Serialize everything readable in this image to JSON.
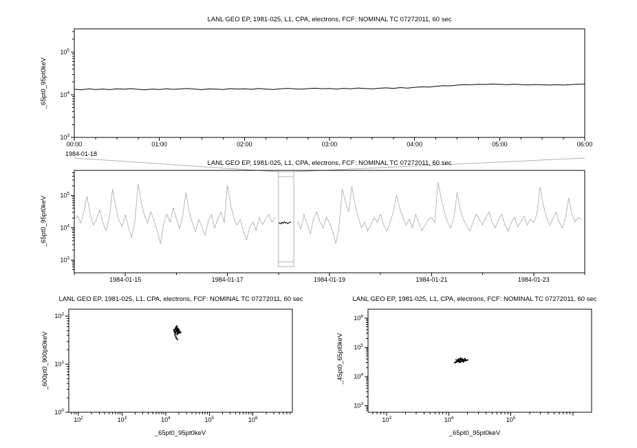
{
  "colors": {
    "zoom_line": "#000000",
    "context_line": "#b8b8b8",
    "selection": "#b0b0b0",
    "scatter": "#000000"
  },
  "chart_data": [
    {
      "id": "top_zoom_timeseries",
      "type": "line",
      "title": "LANL GEO EP, 1981-025, L1, CPA, electrons, FCF: NOMINAL TC 07272011, 60 sec",
      "ylabel": "_65pt0_95pt0keV",
      "yscale": "log",
      "ylim": [
        1000,
        350000
      ],
      "ytick_exponents": [
        3,
        4,
        5
      ],
      "xlim_hours": [
        0,
        6
      ],
      "xtick_labels": [
        "00:00",
        "01:00",
        "02:00",
        "03:00",
        "04:00",
        "05:00",
        "06:00"
      ],
      "x_start_label": "1984-01-18",
      "values": [
        13400,
        13100,
        13700,
        13300,
        13600,
        13200,
        13800,
        13500,
        13900,
        13400,
        13100,
        13600,
        13300,
        13800,
        13400,
        13700,
        14000,
        13500,
        13200,
        13700,
        13500,
        13300,
        13900,
        13600,
        13800,
        13400,
        14000,
        13600,
        13300,
        13700,
        14100,
        13800,
        13500,
        13900,
        14200,
        13800,
        14000,
        13600,
        14100,
        13800,
        14400,
        14000,
        13700,
        14200,
        14500,
        14100,
        14700,
        14300,
        14900,
        15300,
        15100,
        15800,
        16300,
        16100,
        16800,
        17300,
        17100,
        17600,
        17400,
        17800,
        17500,
        17200,
        17700,
        17300,
        17000,
        17400,
        17100,
        16800,
        17200,
        16900,
        17300,
        17700,
        17900
      ]
    },
    {
      "id": "context_timeseries",
      "type": "line",
      "title": "LANL GEO EP, 1981-025, L1, CPA, electrons, FCF: NOMINAL TC 07272011, 60 sec",
      "ylabel": "_65pt0_95pt0keV",
      "yscale": "log",
      "ylim": [
        400,
        600000
      ],
      "ytick_exponents": [
        3,
        4,
        5
      ],
      "xlim_days": [
        0,
        10
      ],
      "xtick_labels": [
        "1984-01-15",
        "1984-01-17",
        "1984-01-19",
        "1984-01-21",
        "1984-01-23"
      ],
      "xtick_day_offsets": [
        1,
        3,
        5,
        7,
        9
      ],
      "values": [
        18000,
        23000,
        14000,
        32000,
        95000,
        26000,
        12000,
        19000,
        36000,
        14000,
        8000,
        21000,
        160000,
        42000,
        17000,
        11000,
        26000,
        10000,
        5000,
        16000,
        230000,
        62000,
        24000,
        14000,
        31000,
        17000,
        8000,
        3200,
        13000,
        26000,
        15000,
        42000,
        19000,
        9500,
        23000,
        125000,
        31000,
        14000,
        7500,
        18000,
        11000,
        5800,
        16000,
        26000,
        9800,
        19000,
        31000,
        14000,
        210000,
        52000,
        21000,
        12000,
        18000,
        7800,
        4200,
        10500,
        15000,
        8200,
        21000,
        12500,
        18500,
        26000,
        14500,
        21000,
        null,
        null,
        null,
        null,
        null,
        null,
        16000,
        9000,
        26000,
        13000,
        6200,
        19000,
        31000,
        15000,
        9800,
        21000,
        14000,
        7800,
        3200,
        11000,
        160000,
        62000,
        31000,
        190000,
        52000,
        21000,
        10000,
        15000,
        8000,
        12500,
        21000,
        14500,
        26000,
        12000,
        7800,
        15000,
        31000,
        105000,
        42000,
        21000,
        12000,
        18500,
        9800,
        26000,
        15000,
        8200,
        12000,
        18000,
        21000,
        14500,
        260000,
        82000,
        31000,
        15000,
        9800,
        21000,
        125000,
        36000,
        18000,
        11500,
        7800,
        15000,
        26000,
        18000,
        12000,
        21000,
        31000,
        14500,
        9800,
        18000,
        26000,
        12000,
        7800,
        15000,
        21000,
        10500,
        15500,
        23000,
        12000,
        18500,
        14500,
        26000,
        185000,
        52000,
        21000,
        12000,
        18500,
        31000,
        15000,
        9800,
        21000,
        85000,
        26000,
        15500,
        21000,
        18000
      ],
      "highlight": {
        "start_day": 4.0,
        "end_day": 4.25,
        "values": [
          13600,
          14300,
          13100,
          14900,
          13500,
          15300,
          13900,
          14600,
          13300,
          14200,
          15100,
          14400
        ]
      },
      "selection_box": {
        "start_day": 4.0,
        "end_day": 4.3
      }
    },
    {
      "id": "scatter_600_900_vs_65_95",
      "type": "scatter",
      "title": "LANL GEO EP, 1981-025, L1, CPA, electrons, FCF: NOMINAL TC 07272011, 60 sec",
      "xlabel": "_65pt0_95pt0keV",
      "ylabel": "_600pt0_900pt0keV",
      "xscale": "log",
      "yscale": "log",
      "xlim": [
        60,
        8000000
      ],
      "ylim": [
        1,
        140
      ],
      "xtick_exponents": [
        2,
        3,
        4,
        5,
        6
      ],
      "ytick_exponents": [
        0,
        1,
        2
      ],
      "x": [
        17000,
        18000,
        16500,
        19000,
        17500,
        18500,
        16000,
        20000,
        17200,
        18800,
        15800,
        19500,
        17800,
        16800,
        18200,
        21000,
        17400,
        16200,
        19200,
        18600,
        15500,
        20500,
        17600,
        18400,
        16600,
        19800,
        17000,
        18000,
        22000,
        16400,
        17500,
        18500
      ],
      "y": [
        48,
        52,
        45,
        50,
        55,
        42,
        47,
        53,
        58,
        44,
        49,
        46,
        51,
        56,
        43,
        48,
        60,
        41,
        54,
        47,
        52,
        45,
        49,
        57,
        44,
        50,
        38,
        62,
        46,
        53,
        35,
        33
      ]
    },
    {
      "id": "scatter_45_65_vs_65_95",
      "type": "scatter",
      "title": "LANL GEO EP, 1981-025, L1, CPA, electrons, FCF: NOMINAL TC 07272011, 60 sec",
      "xlabel": "_65pt0_95pt0keV",
      "ylabel": "_45pt0_65pt0keV",
      "xscale": "log",
      "yscale": "log",
      "xlim": [
        500,
        2000000
      ],
      "ylim": [
        600,
        2000000
      ],
      "xtick_exponents": [
        3,
        4,
        5
      ],
      "ytick_exponents": [
        3,
        4,
        5,
        6
      ],
      "x": [
        15000,
        16000,
        14000,
        17000,
        13500,
        18000,
        14500,
        15500,
        16500,
        13000,
        17500,
        14200,
        15800,
        16200,
        12500,
        18500,
        15200,
        14800,
        16800,
        13800,
        19000,
        15600,
        14400,
        17200,
        15400,
        16400,
        13200,
        18200,
        15000,
        20000
      ],
      "y": [
        35000,
        38000,
        33000,
        36000,
        32000,
        37000,
        34000,
        39000,
        33500,
        31000,
        35500,
        36500,
        32500,
        40000,
        30000,
        34500,
        37500,
        31500,
        38500,
        35000,
        36000,
        33000,
        39500,
        32000,
        42000,
        34000,
        37000,
        40500,
        30500,
        36500
      ]
    }
  ]
}
